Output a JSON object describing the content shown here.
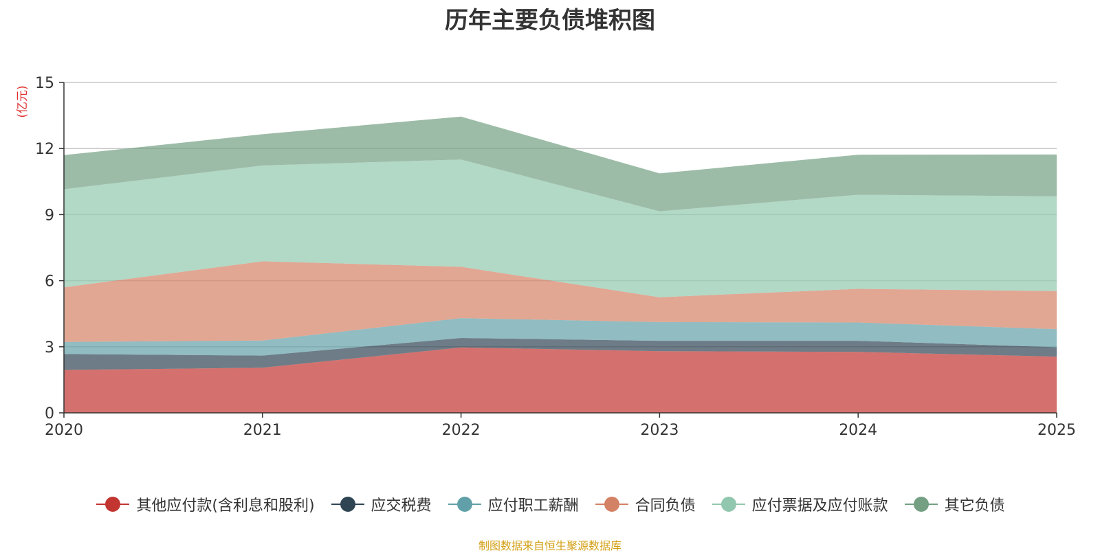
{
  "chart_data": {
    "type": "area",
    "stacked": true,
    "title": "历年主要负债堆积图",
    "ylabel": "(亿元)",
    "xlabel": "",
    "categories": [
      "2020",
      "2021",
      "2022",
      "2023",
      "2024",
      "2025"
    ],
    "ylim": [
      0,
      15
    ],
    "yticks": [
      0,
      3,
      6,
      9,
      12,
      15
    ],
    "grid": true,
    "legend_position": "bottom",
    "series": [
      {
        "name": "其他应付款(含利息和股利)",
        "color": "#c23531",
        "values": [
          1.95,
          2.05,
          2.97,
          2.8,
          2.77,
          2.55
        ]
      },
      {
        "name": "应交税费",
        "color": "#2f4554",
        "values": [
          0.72,
          0.55,
          0.43,
          0.47,
          0.5,
          0.43
        ]
      },
      {
        "name": "应付职工薪酬",
        "color": "#61a0a8",
        "values": [
          0.55,
          0.68,
          0.9,
          0.85,
          0.83,
          0.82
        ]
      },
      {
        "name": "合同负债",
        "color": "#d48265",
        "values": [
          2.48,
          3.6,
          2.33,
          1.13,
          1.53,
          1.73
        ]
      },
      {
        "name": "应付票据及应付账款",
        "color": "#91c7ae",
        "values": [
          4.45,
          4.35,
          4.87,
          3.9,
          4.27,
          4.3
        ]
      },
      {
        "name": "其它负债",
        "color": "#749f83",
        "values": [
          1.55,
          1.42,
          1.95,
          1.72,
          1.82,
          1.9
        ]
      }
    ]
  },
  "source_note": "制图数据来自恒生聚源数据库"
}
